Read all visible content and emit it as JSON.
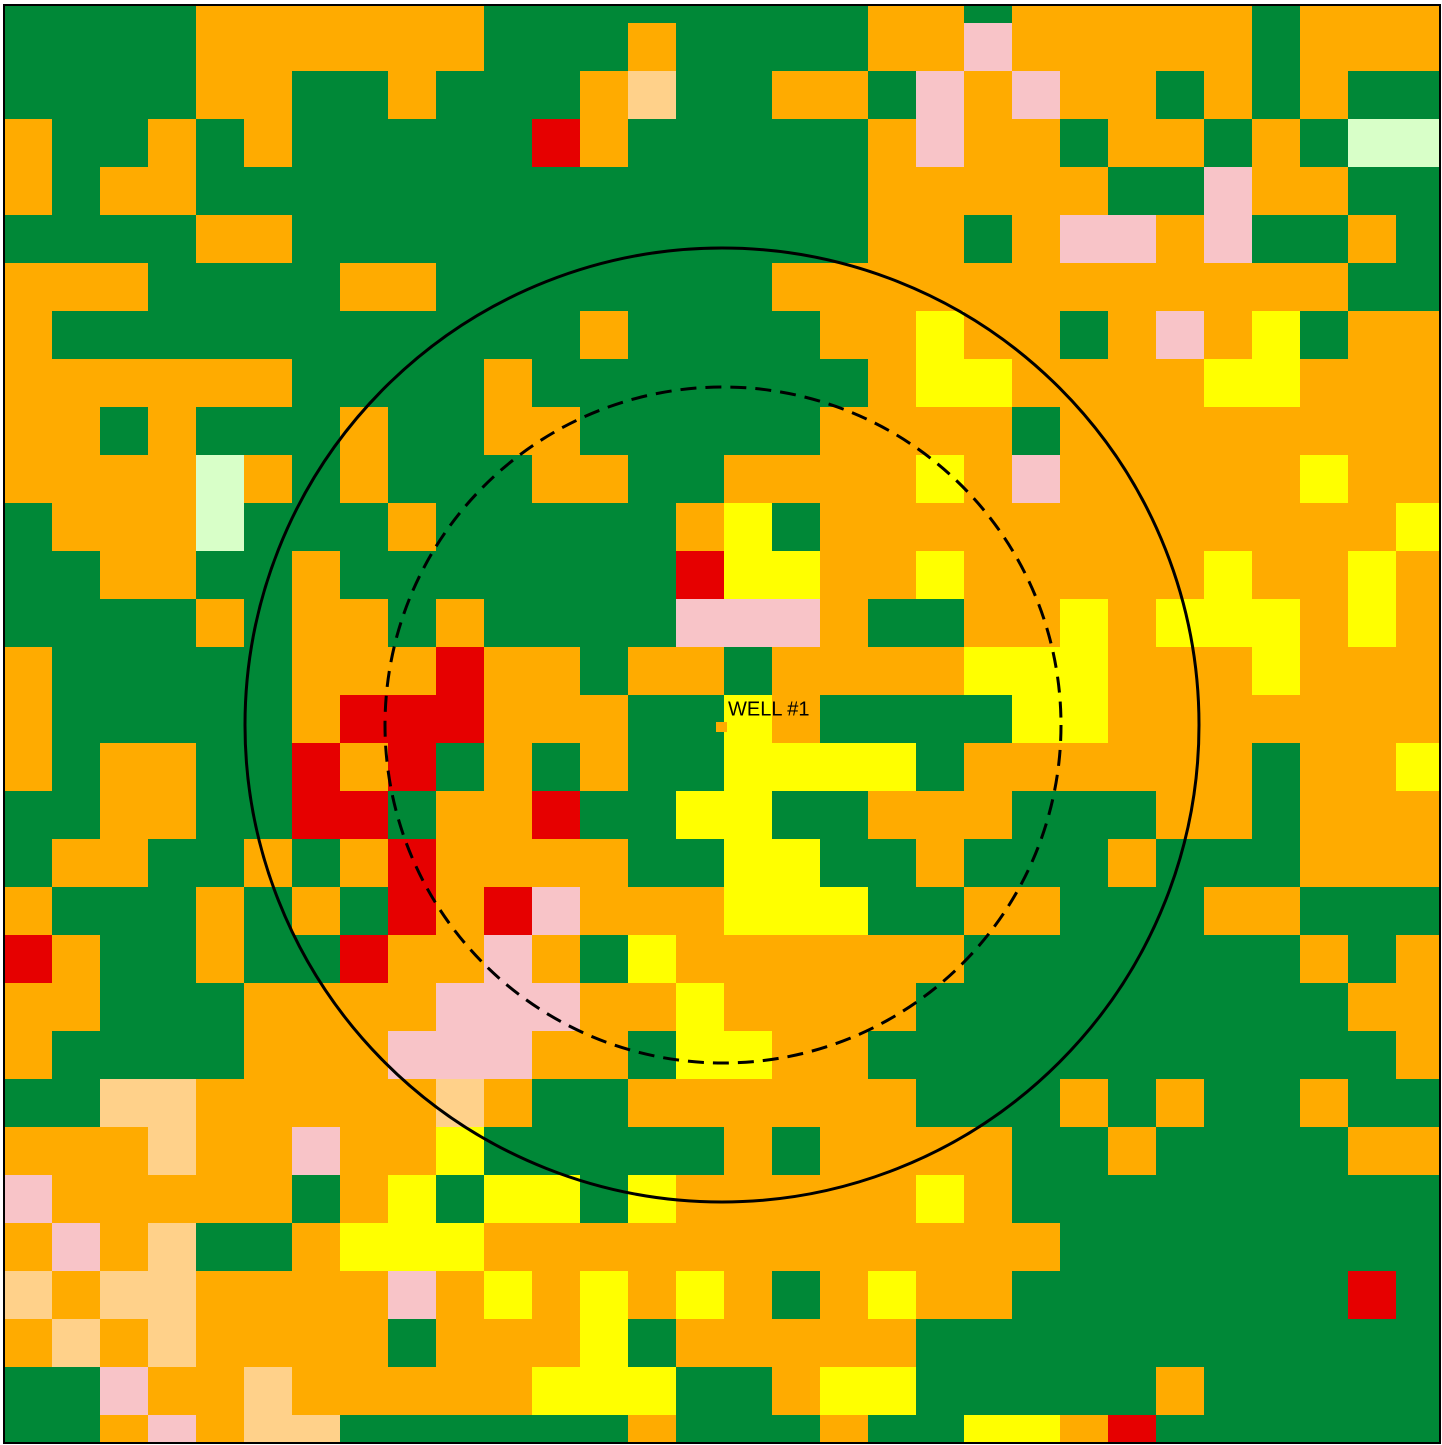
{
  "map": {
    "label": "WELL #1"
  }
}
